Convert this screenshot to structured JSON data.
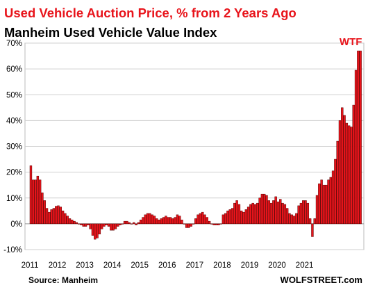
{
  "title": "Used Vehicle Auction Price, % from 2 Years Ago",
  "subtitle": "Manheim Used Vehicle Value Index",
  "source": "Source: Manheim",
  "brand": "WOLFSTREET.com",
  "chart_data": {
    "type": "bar",
    "title": "Used Vehicle Auction Price, % from 2 Years Ago",
    "subtitle": "Manheim Used Vehicle Value Index",
    "xlabel": "",
    "ylabel": "",
    "ylim": [
      -10,
      70
    ],
    "y_ticks": [
      -10,
      0,
      10,
      20,
      30,
      40,
      50,
      60,
      70
    ],
    "y_tick_labels": [
      "-10%",
      "0%",
      "10%",
      "20%",
      "30%",
      "40%",
      "50%",
      "60%",
      "70%"
    ],
    "x_tick_labels": [
      "2011",
      "2012",
      "2013",
      "2014",
      "2015",
      "2016",
      "2017",
      "2018",
      "2019",
      "2020",
      "2021"
    ],
    "start": "2011-01",
    "frequency": "monthly",
    "bar_color": "#e8141b",
    "bar_edge_color": "#5a0000",
    "grid": true,
    "annotation": "WTF",
    "values": [
      22.5,
      17.0,
      17.0,
      18.5,
      17.0,
      12.0,
      9.0,
      6.0,
      4.5,
      5.5,
      6.0,
      6.8,
      7.0,
      6.5,
      5.0,
      4.0,
      3.0,
      2.0,
      1.5,
      1.0,
      0.5,
      0.0,
      -0.5,
      -1.0,
      -1.0,
      -0.5,
      -2.0,
      -4.5,
      -6.0,
      -5.5,
      -4.0,
      -2.0,
      -1.0,
      -0.5,
      -1.0,
      -2.5,
      -2.5,
      -2.0,
      -1.0,
      -0.5,
      0.0,
      1.0,
      1.0,
      0.5,
      0.0,
      0.5,
      -0.5,
      0.5,
      1.5,
      2.5,
      3.5,
      4.0,
      4.0,
      3.5,
      3.0,
      2.0,
      1.5,
      2.0,
      2.5,
      3.0,
      2.5,
      2.5,
      2.0,
      2.5,
      3.5,
      3.0,
      1.5,
      0.0,
      -1.5,
      -1.5,
      -1.0,
      0.0,
      2.0,
      3.5,
      4.0,
      4.5,
      3.5,
      2.5,
      1.0,
      0.0,
      -0.5,
      -0.5,
      -0.5,
      0.0,
      3.5,
      4.0,
      5.0,
      5.5,
      6.0,
      8.0,
      9.0,
      7.5,
      5.0,
      4.5,
      5.5,
      6.5,
      7.5,
      8.0,
      7.5,
      8.0,
      10.0,
      11.5,
      11.5,
      11.0,
      9.0,
      8.0,
      9.0,
      10.5,
      8.5,
      9.5,
      8.0,
      7.5,
      6.0,
      4.0,
      3.5,
      3.0,
      4.0,
      7.0,
      8.0,
      9.0,
      9.0,
      8.0,
      2.0,
      -5.0,
      2.0,
      11.0,
      15.5,
      17.0,
      15.0,
      15.0,
      17.0,
      18.0,
      20.5,
      25.0,
      32.0,
      40.0,
      45.0,
      42.0,
      39.0,
      38.0,
      37.5,
      46.0,
      59.5,
      67.0,
      67.0
    ]
  }
}
